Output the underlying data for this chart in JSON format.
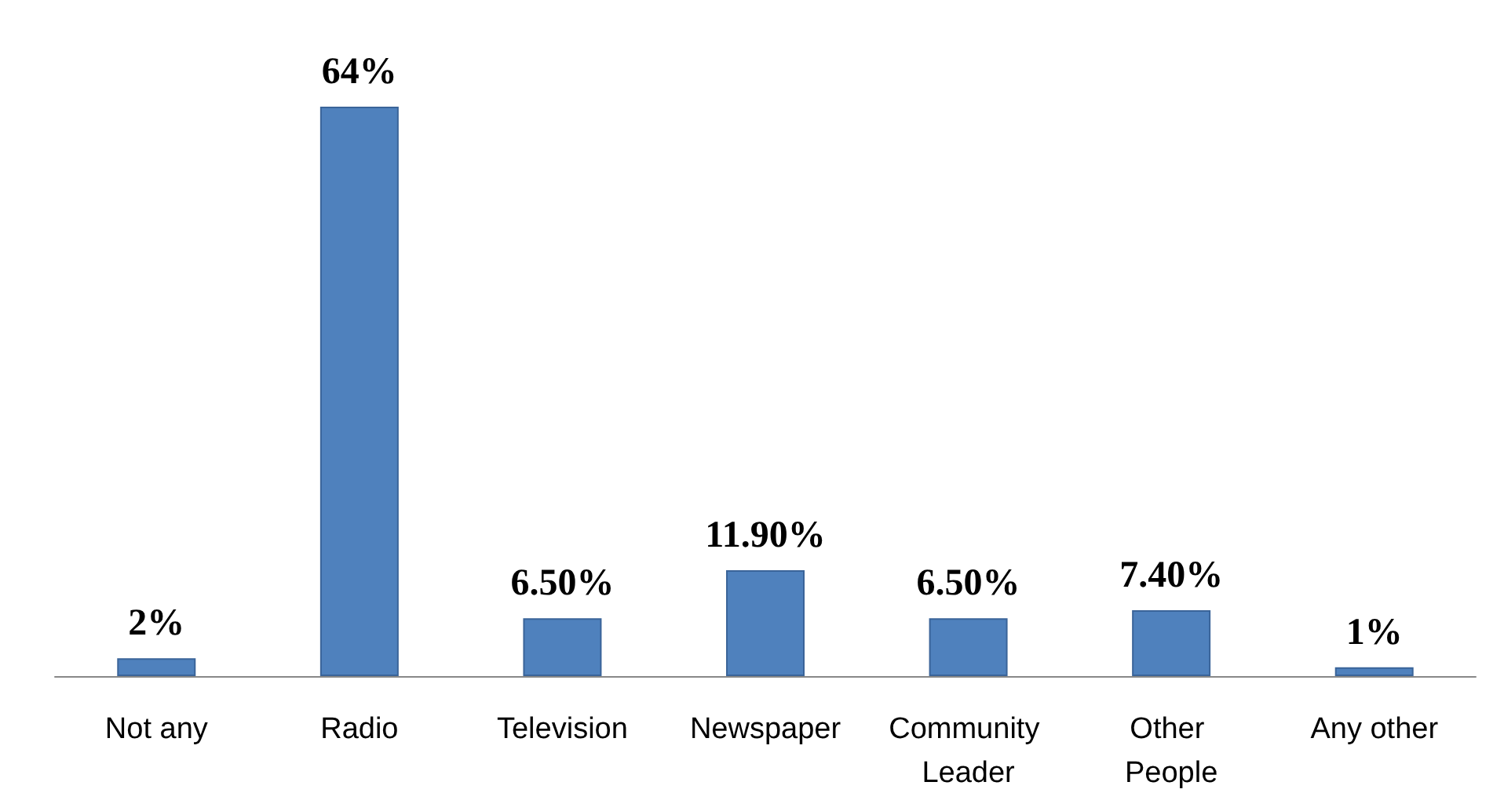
{
  "chart_data": {
    "type": "bar",
    "categories": [
      "Not any",
      "Radio",
      "Television",
      "Newspaper",
      "Community Leader",
      "Other People",
      "Any other"
    ],
    "values": [
      2,
      64,
      6.5,
      11.9,
      6.5,
      7.4,
      1
    ],
    "value_labels": [
      "2%",
      "64%",
      "6.50%",
      "11.90%",
      "6.50%",
      "7.40%",
      "1%"
    ],
    "color": "#4f81bd"
  }
}
